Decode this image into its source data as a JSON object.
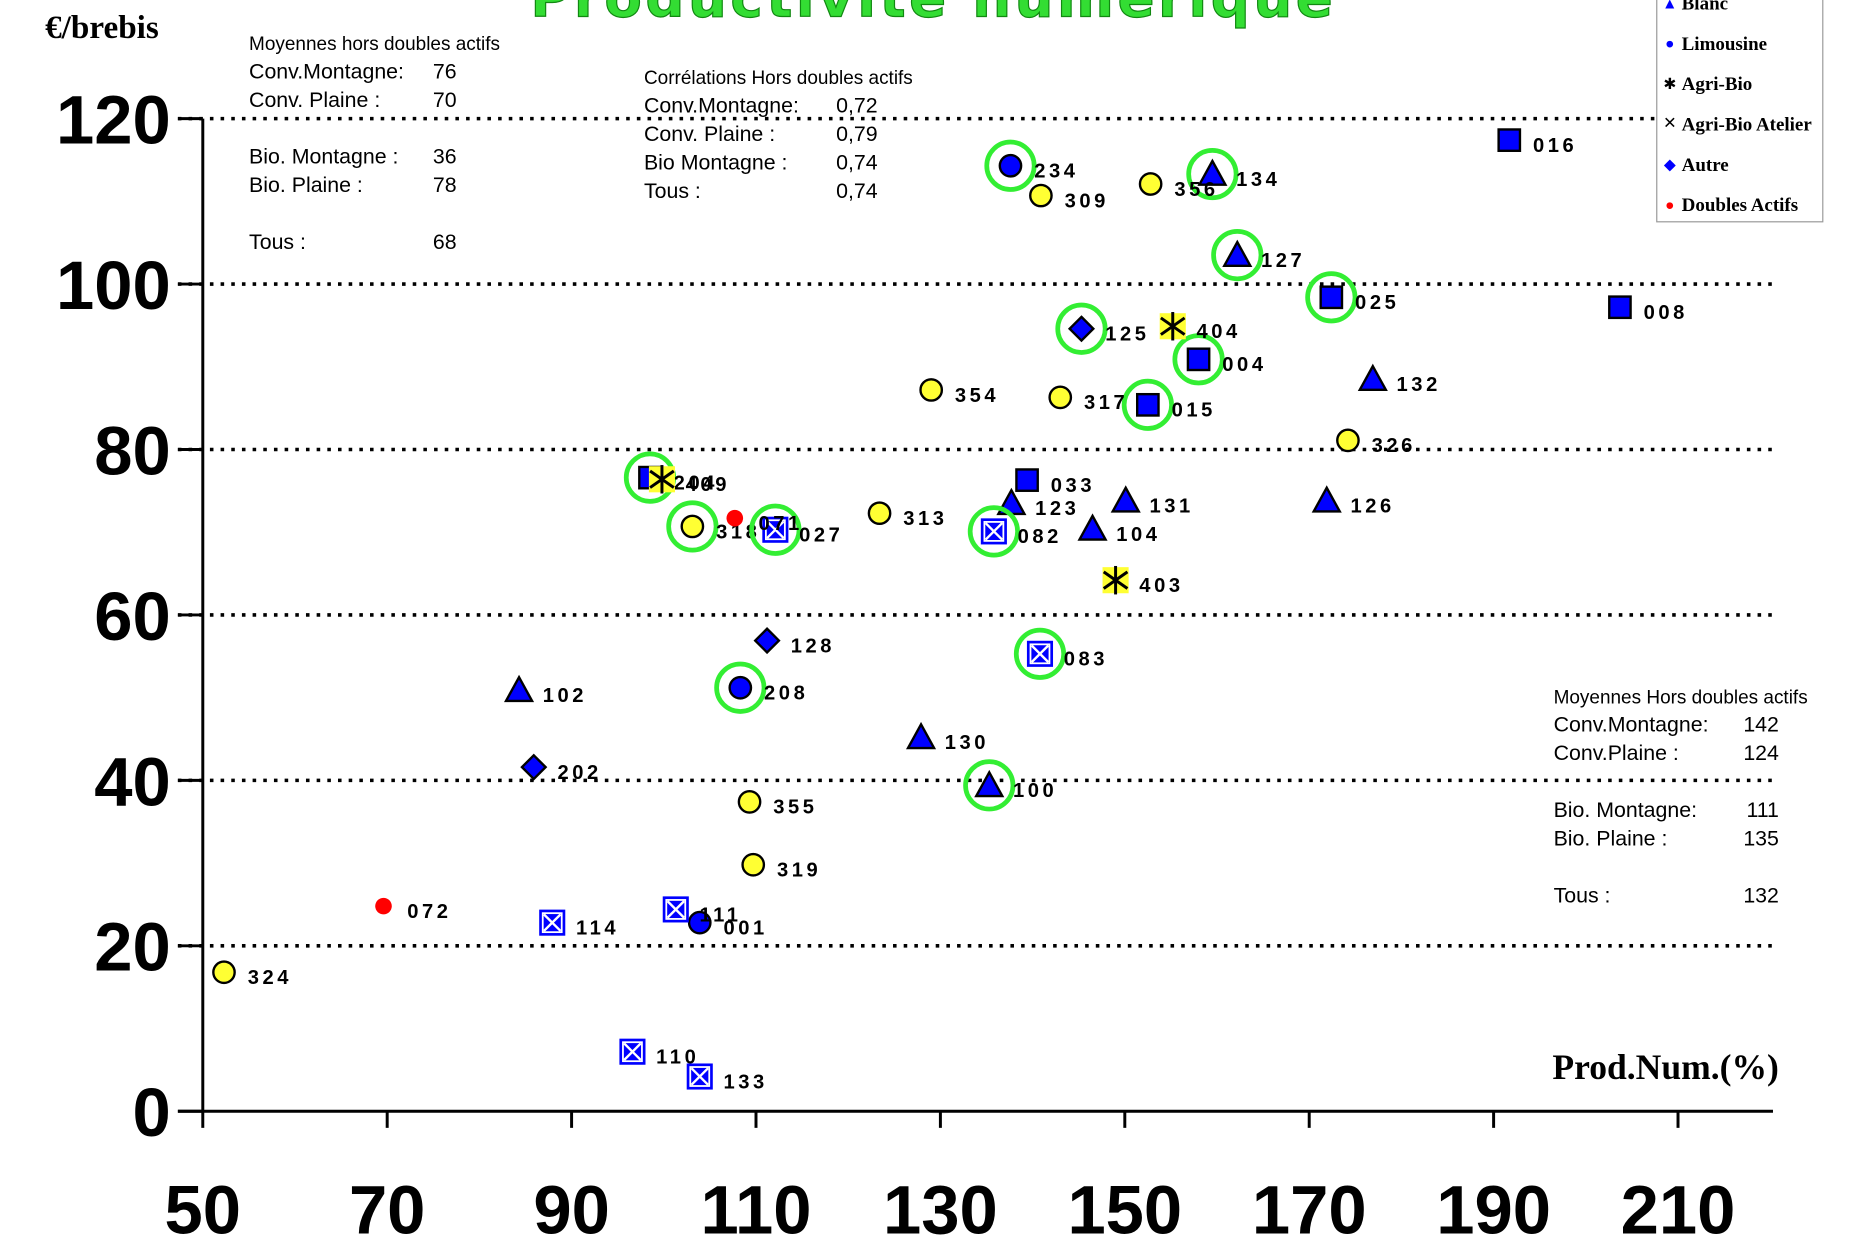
{
  "chart_data": {
    "type": "scatter",
    "title": "Productivité numérique",
    "y_label": "€/brebis",
    "x_label": "Prod.Num.(%)",
    "xlim": [
      47.3,
      220.3
    ],
    "ylim": [
      0,
      120
    ],
    "xticks": [
      50,
      70,
      90,
      110,
      130,
      150,
      170,
      190,
      210
    ],
    "yticks": [
      0,
      20,
      40,
      60,
      80,
      100,
      120
    ],
    "grid": true,
    "series": [
      {
        "marker": "square",
        "color": "#0000ff",
        "labels": [
          "016",
          "008",
          "025",
          "004",
          "015",
          "033",
          "204"
        ],
        "x": [
          191.7,
          203.7,
          172.4,
          158.0,
          152.5,
          139.4,
          98.5
        ],
        "values": [
          117.4,
          97.2,
          98.4,
          90.9,
          85.4,
          76.3,
          76.6
        ],
        "ring": [
          false,
          false,
          true,
          true,
          true,
          false,
          true
        ]
      },
      {
        "name": "Blanc",
        "marker": "triangle",
        "color": "#0000ff",
        "labels": [
          "134",
          "127",
          "132",
          "126",
          "131",
          "123",
          "104",
          "102",
          "130",
          "100"
        ],
        "x": [
          159.5,
          162.2,
          176.9,
          171.9,
          150.1,
          137.7,
          146.5,
          84.3,
          127.9,
          135.3
        ],
        "values": [
          113.3,
          103.5,
          88.5,
          73.8,
          73.8,
          73.5,
          70.4,
          50.9,
          45.2,
          39.4
        ],
        "ring": [
          true,
          true,
          false,
          false,
          false,
          false,
          false,
          false,
          false,
          true
        ]
      },
      {
        "name": "Limousine",
        "marker": "circle",
        "color": "#0000ff",
        "labels": [
          "234",
          "208",
          "001"
        ],
        "x": [
          137.6,
          108.3,
          103.9
        ],
        "values": [
          114.3,
          51.2,
          22.8
        ],
        "ring": [
          true,
          true,
          false
        ]
      },
      {
        "marker": "circle",
        "color": "#ffff33",
        "labels": [
          "309",
          "356",
          "354",
          "317",
          "326",
          "313",
          "318",
          "355",
          "319",
          "324"
        ],
        "x": [
          140.9,
          152.8,
          129.0,
          143.0,
          174.2,
          123.4,
          103.1,
          109.3,
          109.7,
          52.3
        ],
        "values": [
          110.7,
          112.1,
          87.2,
          86.3,
          81.1,
          72.3,
          70.7,
          37.4,
          29.8,
          16.8
        ],
        "ring": [
          false,
          false,
          false,
          false,
          false,
          false,
          true,
          false,
          false,
          false
        ]
      },
      {
        "name": "Agri-Bio",
        "marker": "asterisk",
        "color": "#ffff33",
        "labels": [
          "404",
          "403",
          "409"
        ],
        "x": [
          155.2,
          149.0,
          99.8
        ],
        "values": [
          94.9,
          64.2,
          76.4
        ],
        "ring": [
          false,
          false,
          false
        ]
      },
      {
        "name": "Agri-Bio Atelier",
        "marker": "cross",
        "color": "#0000ff",
        "labels": [
          "027",
          "082",
          "083",
          "114",
          "111",
          "110",
          "133"
        ],
        "x": [
          112.1,
          135.8,
          140.8,
          87.9,
          101.3,
          96.6,
          103.9
        ],
        "values": [
          70.3,
          70.1,
          55.3,
          22.8,
          24.4,
          7.2,
          4.2
        ],
        "ring": [
          true,
          true,
          true,
          false,
          false,
          false,
          false
        ]
      },
      {
        "name": "Autre",
        "marker": "diamond",
        "color": "#0000ff",
        "labels": [
          "125",
          "128",
          "202"
        ],
        "x": [
          145.3,
          111.2,
          85.9
        ],
        "values": [
          94.6,
          56.9,
          41.6
        ],
        "ring": [
          true,
          false,
          false
        ]
      },
      {
        "name": "Doubles Actifs",
        "marker": "dot",
        "color": "#ff0000",
        "labels": [
          "071",
          "072"
        ],
        "x": [
          107.7,
          69.6
        ],
        "values": [
          71.7,
          24.8
        ],
        "ring": [
          false,
          false
        ]
      }
    ],
    "annotations": [
      {
        "title": "Moyennes hors doubles actifs",
        "rows": [
          [
            [
              "Conv.Montagne:",
              "76"
            ],
            [
              "Conv. Plaine :",
              "70"
            ]
          ],
          [
            [
              "Bio. Montagne :",
              "36"
            ],
            [
              "Bio. Plaine :",
              "78"
            ]
          ],
          [
            [
              "Tous :",
              "68"
            ]
          ]
        ]
      },
      {
        "title": "Corrélations Hors doubles actifs",
        "rows": [
          [
            [
              "Conv.Montagne:",
              "0,72"
            ],
            [
              "Conv. Plaine :",
              "0,79"
            ],
            [
              "Bio Montagne :",
              "0,74"
            ],
            [
              "Tous :",
              "0,74"
            ]
          ]
        ]
      },
      {
        "title": "Moyennes Hors doubles actifs",
        "rows": [
          [
            [
              "Conv.Montagne:",
              "142"
            ],
            [
              "Conv.Plaine :",
              "124"
            ]
          ],
          [
            [
              "Bio. Montagne:",
              "111"
            ],
            [
              "Bio. Plaine :",
              "135"
            ]
          ],
          [
            [
              "Tous :",
              "132"
            ]
          ]
        ]
      }
    ]
  }
}
